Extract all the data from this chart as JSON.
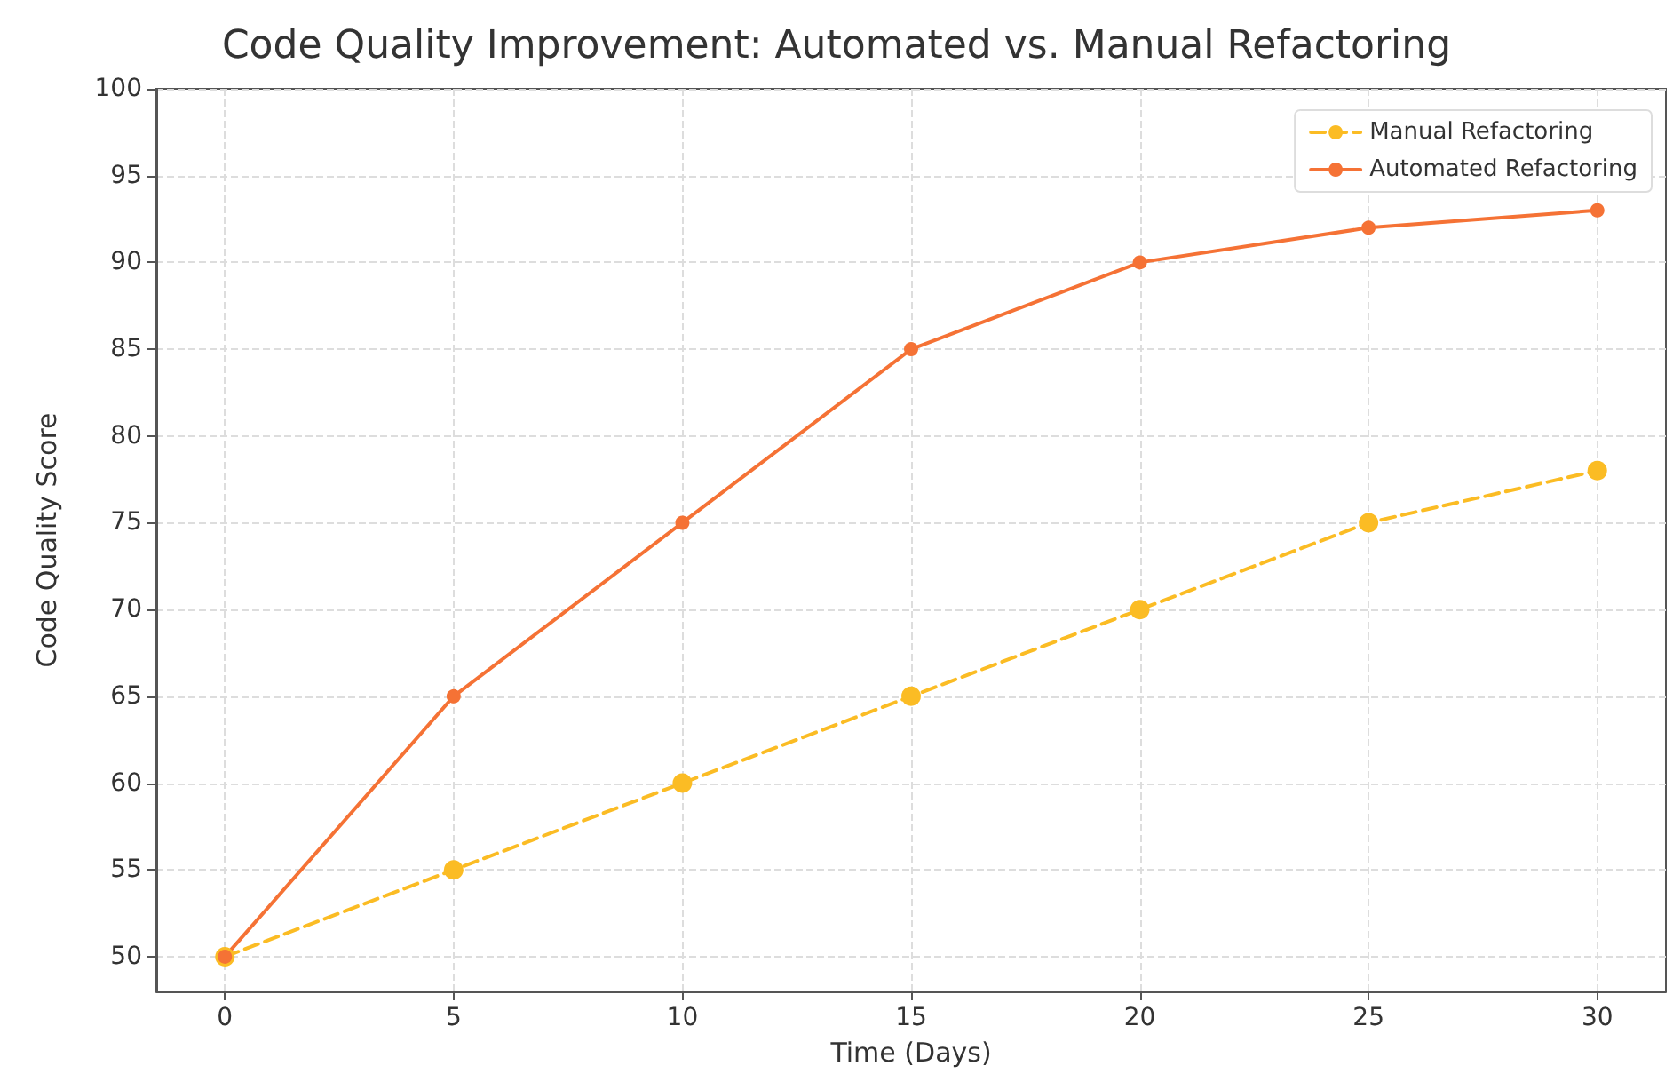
{
  "chart_data": {
    "type": "line",
    "title": "Code Quality Improvement: Automated vs. Manual Refactoring",
    "xlabel": "Time (Days)",
    "ylabel": "Code Quality Score",
    "x": [
      0,
      5,
      10,
      15,
      20,
      25,
      30
    ],
    "series": [
      {
        "name": "Manual Refactoring",
        "color": "#fbbc24",
        "line_style": "dashed",
        "values": [
          50,
          55,
          60,
          65,
          70,
          75,
          78
        ]
      },
      {
        "name": "Automated Refactoring",
        "color": "#f57235",
        "line_style": "solid",
        "values": [
          50,
          65,
          75,
          85,
          90,
          92,
          93
        ]
      }
    ],
    "xlim": [
      -1.5,
      31.5
    ],
    "xticks": [
      0,
      5,
      10,
      15,
      20,
      25,
      30
    ],
    "ylim": [
      48,
      100
    ],
    "yticks": [
      50,
      55,
      60,
      65,
      70,
      75,
      80,
      85,
      90,
      95,
      100
    ],
    "grid": true,
    "legend": "top right",
    "marker": "circle"
  }
}
